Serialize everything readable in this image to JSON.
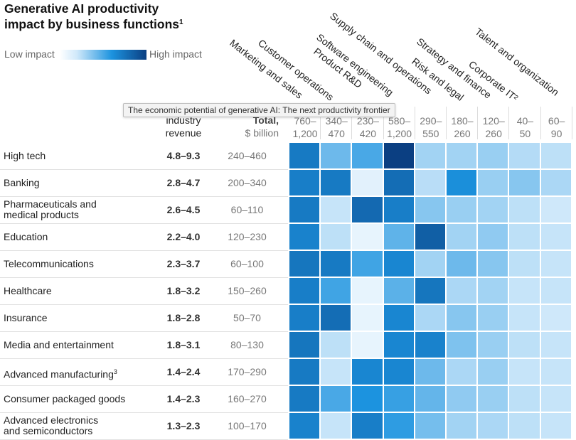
{
  "title_line1": "Generative AI productivity",
  "title_line2": "impact by business functions",
  "title_footnote": "1",
  "legend": {
    "low": "Low impact",
    "high": "High impact"
  },
  "tooltip": "The economic potential of generative AI: The next productivity frontier",
  "headers": {
    "revenue_line1": "industry",
    "revenue_line2": "revenue",
    "total_line1": "Total,",
    "total_line2": "$ billion"
  },
  "colors": {
    "scale": [
      "#ffffff",
      "#cfe8fa",
      "#1c93df",
      "#0b3f82"
    ]
  },
  "chart_data": {
    "type": "heatmap",
    "columns": [
      {
        "name": "Marketing and sales",
        "range_top": "760–",
        "range_bot": "1,200"
      },
      {
        "name": "Customer operations",
        "range_top": "340–",
        "range_bot": "470"
      },
      {
        "name": "Product R&D",
        "range_top": "230–",
        "range_bot": "420"
      },
      {
        "name": "Software engineering",
        "range_top": "580–",
        "range_bot": "1,200"
      },
      {
        "name": "Supply chain and operations",
        "range_top": "290–",
        "range_bot": "550"
      },
      {
        "name": "Risk and legal",
        "range_top": "180–",
        "range_bot": "260"
      },
      {
        "name": "Strategy and finance",
        "range_top": "120–",
        "range_bot": "260"
      },
      {
        "name": "Corporate IT²",
        "range_top": "40–",
        "range_bot": "50"
      },
      {
        "name": "Talent and organization",
        "range_top": "60–",
        "range_bot": "90"
      }
    ],
    "rows": [
      {
        "label": [
          "High tech"
        ],
        "range": "4.8–9.3",
        "total": "240–460",
        "values": [
          0.72,
          0.42,
          0.5,
          1.0,
          0.3,
          0.3,
          0.32,
          0.26,
          0.24
        ]
      },
      {
        "label": [
          "Banking"
        ],
        "range": "2.8–4.7",
        "total": "200–340",
        "values": [
          0.7,
          0.72,
          0.12,
          0.78,
          0.25,
          0.62,
          0.32,
          0.36,
          0.28
        ]
      },
      {
        "label": [
          "Pharmaceuticals and",
          "medical products"
        ],
        "range": "2.6–4.5",
        "total": "60–110",
        "values": [
          0.72,
          0.22,
          0.8,
          0.7,
          0.36,
          0.32,
          0.3,
          0.24,
          0.2
        ]
      },
      {
        "label": [
          "Education"
        ],
        "range": "2.2–4.0",
        "total": "120–230",
        "values": [
          0.68,
          0.24,
          0.1,
          0.45,
          0.85,
          0.3,
          0.34,
          0.24,
          0.22
        ]
      },
      {
        "label": [
          "Telecommunications"
        ],
        "range": "2.3–3.7",
        "total": "60–100",
        "values": [
          0.74,
          0.72,
          0.52,
          0.66,
          0.3,
          0.42,
          0.36,
          0.24,
          0.22
        ]
      },
      {
        "label": [
          "Healthcare"
        ],
        "range": "1.8–3.2",
        "total": "150–260",
        "values": [
          0.7,
          0.52,
          0.1,
          0.46,
          0.74,
          0.28,
          0.3,
          0.22,
          0.22
        ]
      },
      {
        "label": [
          "Insurance"
        ],
        "range": "1.8–2.8",
        "total": "50–70",
        "values": [
          0.7,
          0.78,
          0.1,
          0.66,
          0.28,
          0.36,
          0.32,
          0.22,
          0.2
        ]
      },
      {
        "label": [
          "Media and entertainment"
        ],
        "range": "1.8–3.1",
        "total": "80–130",
        "values": [
          0.74,
          0.24,
          0.1,
          0.66,
          0.68,
          0.38,
          0.32,
          0.24,
          0.22
        ]
      },
      {
        "label": [
          "Advanced manufacturing"
        ],
        "footnote": "3",
        "range": "1.4–2.4",
        "total": "170–290",
        "values": [
          0.72,
          0.22,
          0.66,
          0.66,
          0.42,
          0.28,
          0.32,
          0.22,
          0.22
        ]
      },
      {
        "label": [
          "Consumer packaged goods"
        ],
        "range": "1.4–2.3",
        "total": "160–270",
        "values": [
          0.72,
          0.5,
          0.6,
          0.54,
          0.44,
          0.34,
          0.32,
          0.24,
          0.22
        ]
      },
      {
        "label": [
          "Advanced electronics",
          "and semiconductors"
        ],
        "range": "1.3–2.3",
        "total": "100–170",
        "values": [
          0.68,
          0.22,
          0.7,
          0.56,
          0.4,
          0.3,
          0.28,
          0.24,
          0.22
        ]
      }
    ]
  }
}
